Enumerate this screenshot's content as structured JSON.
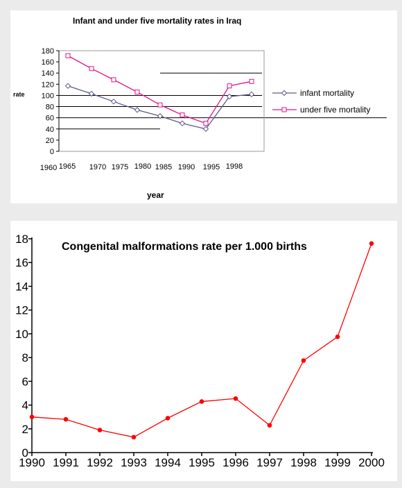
{
  "chart_data": [
    {
      "type": "line",
      "title": "Infant and under five mortality rates in Iraq",
      "xlabel": "year",
      "ylabel": "rate",
      "ylim": [
        0,
        180
      ],
      "y_ticks": [
        0,
        20,
        40,
        60,
        80,
        100,
        120,
        140,
        160,
        180
      ],
      "x_tick_labels": [
        "1960",
        "1965",
        "1970",
        "1975",
        "1980",
        "1985",
        "1990",
        "1995",
        "1998"
      ],
      "legend_position": "right",
      "series": [
        {
          "name": "infant mortality",
          "color": "#5a5a8c",
          "marker": "diamond",
          "values": [
            117,
            103,
            89,
            74,
            63,
            50,
            40,
            98,
            102
          ]
        },
        {
          "name": "under five mortality",
          "color": "#e0138a",
          "marker": "square",
          "values": [
            171,
            148,
            128,
            106,
            83,
            65,
            50,
            117,
            125
          ]
        }
      ]
    },
    {
      "type": "line",
      "title": "Congenital malformations rate per 1.000 births",
      "categories": [
        "1990",
        "1991",
        "1992",
        "1993",
        "1994",
        "1995",
        "1996",
        "1997",
        "1998",
        "1999",
        "2000"
      ],
      "ylim": [
        0,
        18
      ],
      "y_ticks": [
        0,
        2,
        4,
        6,
        8,
        10,
        12,
        14,
        16,
        18
      ],
      "grid": false,
      "series": [
        {
          "color": "#ff0000",
          "marker": "circle",
          "values": [
            3.0,
            2.8,
            1.9,
            1.3,
            2.9,
            4.3,
            4.55,
            2.3,
            7.75,
            9.75,
            17.6
          ]
        }
      ]
    }
  ]
}
